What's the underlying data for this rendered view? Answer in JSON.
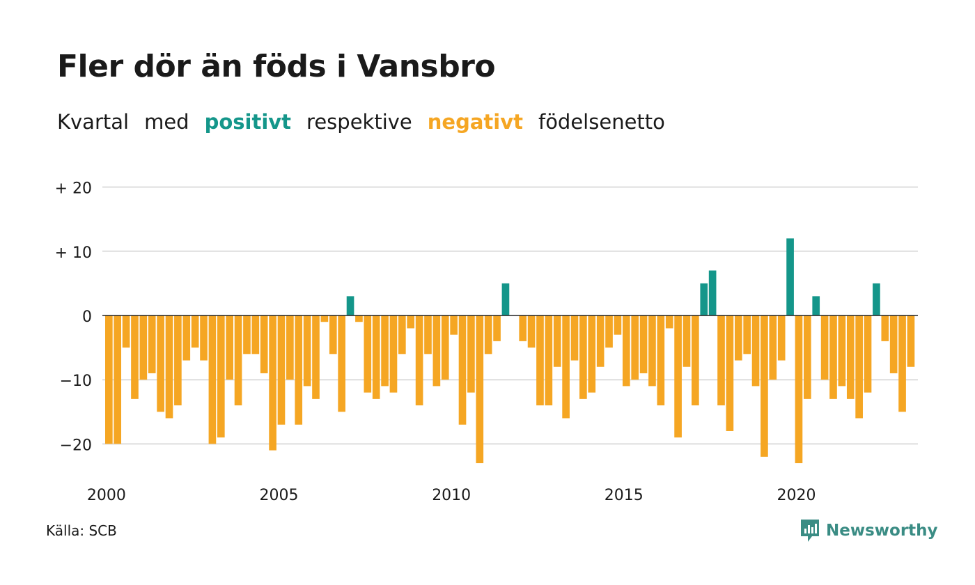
{
  "title": "Fler dör än föds i Vansbro",
  "subtitle": {
    "part1": "Kvartal",
    "part2": "med",
    "positive_word": "positivt",
    "part3": "respektive",
    "negative_word": "negativt",
    "part4": "födelsenetto"
  },
  "source": "Källa: SCB",
  "brand": "Newsworthy",
  "colors": {
    "positive": "#14968a",
    "negative": "#f5a623",
    "grid": "#dddddd",
    "brand": "#3a8c84"
  },
  "chart_data": {
    "type": "bar",
    "xlabel": "",
    "ylabel": "",
    "ylim": [
      -25,
      20
    ],
    "yticks": [
      {
        "value": 20,
        "label": "+ 20"
      },
      {
        "value": 10,
        "label": "+ 10"
      },
      {
        "value": 0,
        "label": "0"
      },
      {
        "value": -10,
        "label": "−10"
      },
      {
        "value": -20,
        "label": "−20"
      }
    ],
    "xticks": [
      {
        "value": 2000,
        "label": "2000"
      },
      {
        "value": 2005,
        "label": "2005"
      },
      {
        "value": 2010,
        "label": "2010"
      },
      {
        "value": 2015,
        "label": "2015"
      },
      {
        "value": 2020,
        "label": "2020"
      }
    ],
    "start_period": "2000 Q1",
    "periods_per_year": 4,
    "values": [
      -20,
      -20,
      -5,
      -13,
      -10,
      -9,
      -15,
      -16,
      -14,
      -7,
      -5,
      -7,
      -20,
      -19,
      -10,
      -14,
      -6,
      -6,
      -9,
      -21,
      -17,
      -10,
      -17,
      -11,
      -13,
      -1,
      -6,
      -15,
      3,
      -1,
      -12,
      -13,
      -11,
      -12,
      -6,
      -2,
      -14,
      -6,
      -11,
      -10,
      -3,
      -17,
      -12,
      -23,
      -6,
      -4,
      5,
      0,
      -4,
      -5,
      -14,
      -14,
      -8,
      -16,
      -7,
      -13,
      -12,
      -8,
      -5,
      -3,
      -11,
      -10,
      -9,
      -11,
      -14,
      -2,
      -19,
      -8,
      -14,
      5,
      7,
      -14,
      -18,
      -7,
      -6,
      -11,
      -22,
      -10,
      -7,
      12,
      -23,
      -13,
      3,
      -10,
      -13,
      -11,
      -13,
      -16,
      -12,
      5,
      -4,
      -9,
      -15,
      -8
    ]
  }
}
